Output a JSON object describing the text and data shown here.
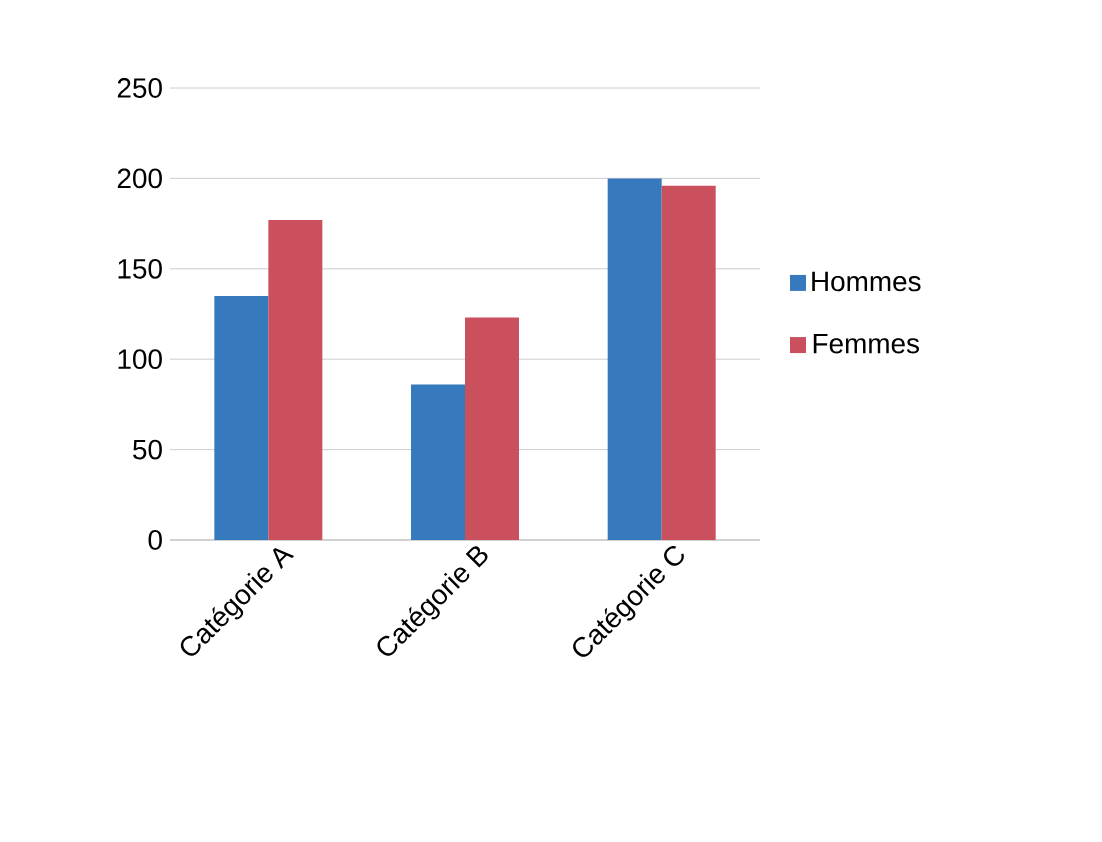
{
  "chart_data": {
    "type": "bar",
    "categories": [
      "Catégorie A",
      "Catégorie B",
      "Catégorie C"
    ],
    "series": [
      {
        "name": "Hommes",
        "color": "#3679bd",
        "values": [
          135,
          86,
          200
        ]
      },
      {
        "name": "Femmes",
        "color": "#c9505c",
        "values": [
          177,
          123,
          196
        ]
      }
    ],
    "ylim": [
      0,
      250
    ],
    "yticks": [
      0,
      50,
      100,
      150,
      200,
      250
    ],
    "grid": "y",
    "legend": "right"
  }
}
